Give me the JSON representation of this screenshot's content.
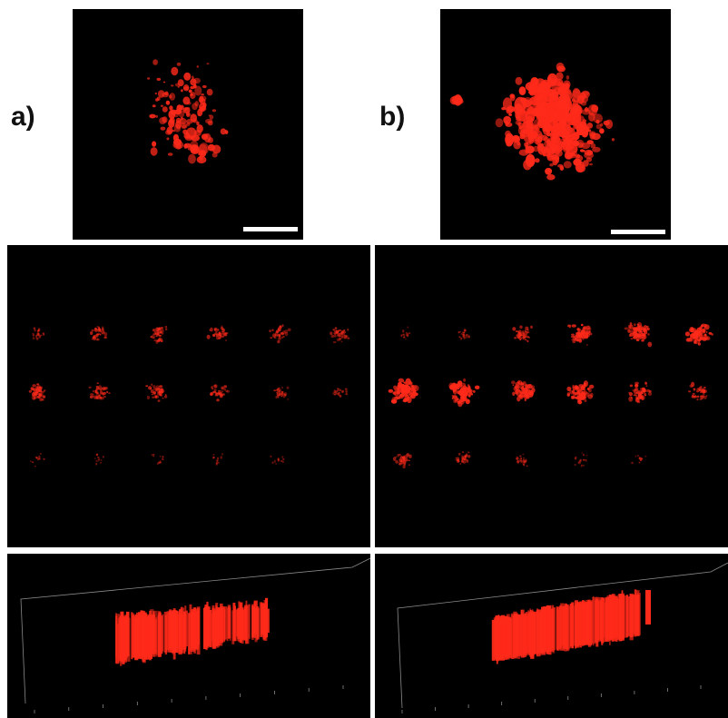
{
  "figure": {
    "panels": [
      {
        "label": "a)"
      },
      {
        "label": "b)"
      }
    ]
  },
  "colors": {
    "background": "#ffffff",
    "image_bg": "#000000",
    "signal": "#ff2a1a",
    "scale_bar": "#ffffff",
    "axis": "#8a8a8a"
  }
}
